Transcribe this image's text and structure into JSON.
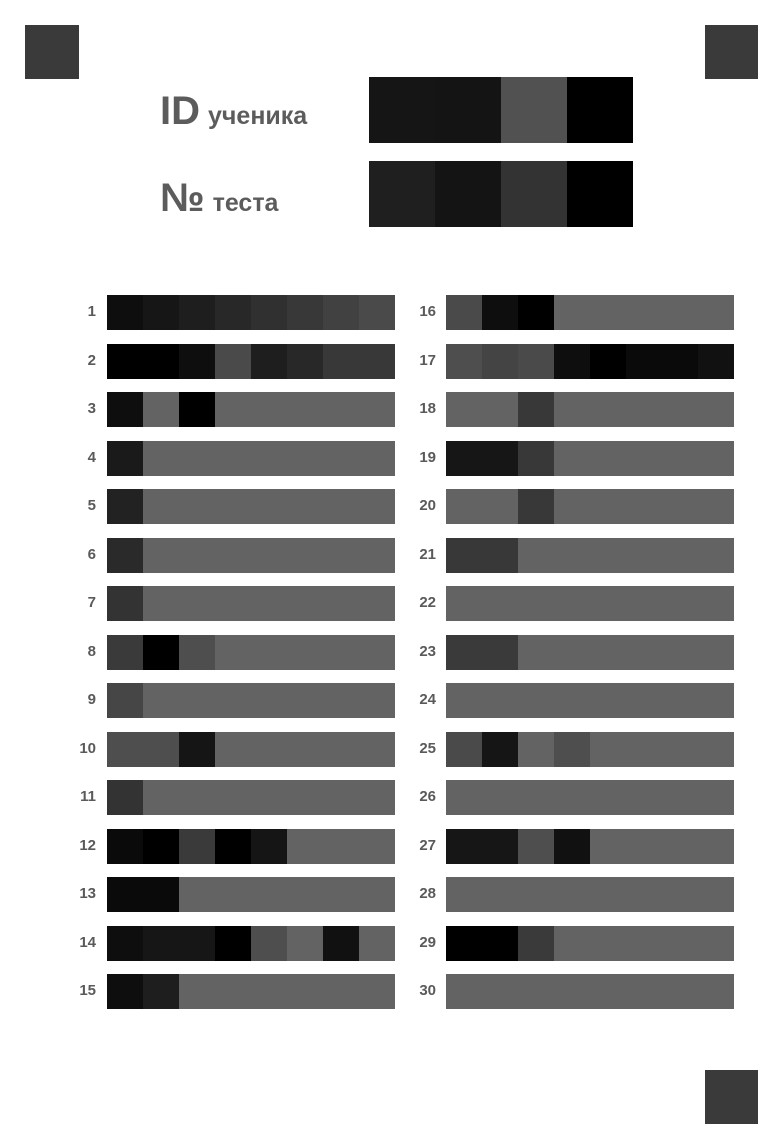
{
  "header": {
    "id_label": {
      "big": "ID",
      "small": "ученика"
    },
    "test_label": {
      "big": "№",
      "small": "теста"
    },
    "id_boxes": [
      "#151515",
      "#141414",
      "#515151",
      "#000000"
    ],
    "test_boxes": [
      "#1f1f1f",
      "#141414",
      "#333333",
      "#000000"
    ]
  },
  "questions": [
    {
      "n": "1",
      "cells": [
        "#0e0e0e",
        "#161616",
        "#1e1e1e",
        "#282828",
        "#303030",
        "#383838",
        "#414141",
        "#4a4a4a"
      ]
    },
    {
      "n": "2",
      "cells": [
        "#000000",
        "#000000",
        "#0e0e0e",
        "#4a4a4a",
        "#1e1e1e",
        "#282828",
        "#383838",
        "#383838"
      ]
    },
    {
      "n": "3",
      "cells": [
        "#0e0e0e",
        "#636363",
        "#000000"
      ]
    },
    {
      "n": "4",
      "cells": [
        "#1a1a1a"
      ]
    },
    {
      "n": "5",
      "cells": [
        "#222222"
      ]
    },
    {
      "n": "6",
      "cells": [
        "#2a2a2a"
      ]
    },
    {
      "n": "7",
      "cells": [
        "#333333"
      ]
    },
    {
      "n": "8",
      "cells": [
        "#3a3a3a",
        "#000000",
        "#4e4e4e"
      ]
    },
    {
      "n": "9",
      "cells": [
        "#464646"
      ]
    },
    {
      "n": "10",
      "cells": [
        "#4e4e4e",
        "#4e4e4e",
        "#151515"
      ]
    },
    {
      "n": "11",
      "cells": [
        "#333333"
      ]
    },
    {
      "n": "12",
      "cells": [
        "#0a0a0a",
        "#000000",
        "#3a3a3a",
        "#000000",
        "#151515"
      ]
    },
    {
      "n": "13",
      "cells": [
        "#0a0a0a",
        "#0a0a0a"
      ]
    },
    {
      "n": "14",
      "cells": [
        "#0e0e0e",
        "#161616",
        "#161616",
        "#000000",
        "#4e4e4e",
        "#636363",
        "#111111"
      ]
    },
    {
      "n": "15",
      "cells": [
        "#0e0e0e",
        "#1e1e1e"
      ]
    },
    {
      "n": "16",
      "cells": [
        "#4a4a4a",
        "#0e0e0e",
        "#000000"
      ]
    },
    {
      "n": "17",
      "cells": [
        "#4e4e4e",
        "#444444",
        "#4a4a4a",
        "#0e0e0e",
        "#000000",
        "#0a0a0a",
        "#0a0a0a",
        "#111111"
      ]
    },
    {
      "n": "18",
      "cells": [
        "#636363",
        "#636363",
        "#383838"
      ]
    },
    {
      "n": "19",
      "cells": [
        "#161616",
        "#161616",
        "#383838"
      ]
    },
    {
      "n": "20",
      "cells": [
        "#636363",
        "#636363",
        "#383838"
      ]
    },
    {
      "n": "21",
      "cells": [
        "#383838",
        "#383838"
      ]
    },
    {
      "n": "22",
      "cells": []
    },
    {
      "n": "23",
      "cells": [
        "#3a3a3a",
        "#3a3a3a"
      ]
    },
    {
      "n": "24",
      "cells": []
    },
    {
      "n": "25",
      "cells": [
        "#4a4a4a",
        "#151515",
        "#636363",
        "#4e4e4e"
      ]
    },
    {
      "n": "26",
      "cells": []
    },
    {
      "n": "27",
      "cells": [
        "#161616",
        "#161616",
        "#4e4e4e",
        "#111111"
      ]
    },
    {
      "n": "28",
      "cells": []
    },
    {
      "n": "29",
      "cells": [
        "#000000",
        "#000000",
        "#3a3a3a"
      ]
    },
    {
      "n": "30",
      "cells": []
    }
  ]
}
